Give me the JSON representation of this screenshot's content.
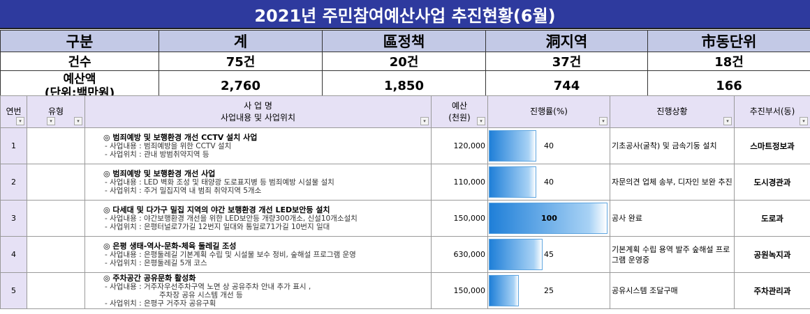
{
  "title": "2021년 주민참여예산사업 추진현황(6월)",
  "summary": {
    "headers": [
      "구분",
      "계",
      "區정책",
      "洞지역",
      "市동단위"
    ],
    "count_label": "건수",
    "counts": [
      "75건",
      "20건",
      "37건",
      "18건"
    ],
    "budget_label_1": "예산액",
    "budget_label_2": "(단위:백만원)",
    "budgets": [
      "2,760",
      "1,850",
      "744",
      "166"
    ]
  },
  "table": {
    "headers": {
      "no": "연번",
      "type": "유형",
      "project_1": "사 업 명",
      "project_2": "사업내용 및 사업위치",
      "budget_1": "예산",
      "budget_2": "(천원)",
      "progress": "진행률(%)",
      "status": "진행상황",
      "dept": "추진부서(동)"
    },
    "dropdown_glyph": "▾",
    "rows": [
      {
        "no": "1",
        "title": "◎ 범죄예방 및 보행환경 개선 CCTV 설치 사업",
        "lines": [
          "- 사업내용 : 범죄예방을 위한 CCTV 설치",
          "- 사업위치 : 관내 방범취약지역 등"
        ],
        "budget": "120,000",
        "progress": 40,
        "progress_label": "40",
        "status": "기초공사(굴착) 및 금속기둥 설치",
        "dept": "스마트정보과"
      },
      {
        "no": "2",
        "title": "◎ 범죄예방 및 보행환경 개선 사업",
        "lines": [
          "- 사업내용 : LED 벽화 조성 및 태양광 도로표지병 등 범죄예방 시설물 설치",
          "- 사업위치 : 주거 밀집지역 내 범죄 취약지역 5개소"
        ],
        "budget": "110,000",
        "progress": 40,
        "progress_label": "40",
        "status": "자문의견 업체 송부, 디자인 보완 추진",
        "dept": "도시경관과"
      },
      {
        "no": "3",
        "title": "◎ 다세대 및 다가구 밀집 지역의 야간 보행환경 개선 LED보안등 설치",
        "lines": [
          "- 사업내용 : 야간보행환경 개선을 위한 LED보안등 개량300개소, 신설10개소설치",
          "- 사업위치 : 은평터널로7가길 12번지 일대와 통일로71가길 10번지 일대"
        ],
        "budget": "150,000",
        "progress": 100,
        "progress_label": "100",
        "status": "공사 완료",
        "dept": "도로과"
      },
      {
        "no": "4",
        "title": "◎ 은평 생태-역사-문화-체육 둘레길 조성",
        "lines": [
          "- 사업내용 : 은평둘레길 기본계획 수립 및 시설물 보수 정비, 숲해설 프로그램 운영",
          "- 사업위치 : 은평둘레길 5개 코스"
        ],
        "budget": "630,000",
        "progress": 45,
        "progress_label": "45",
        "status": "기본계획 수립 용역 발주 숲해설 프로그램 운영중",
        "dept": "공원녹지과"
      },
      {
        "no": "5",
        "title": "◎ 주차공간 공유문화 활성화",
        "lines": [
          "- 사업내용 : 거주자우선주차구역 노면 상 공유주차 안내 추가 표시 ,",
          "주차장 공유 시스템 개선 등",
          "- 사업위치 : 은평구 거주자 공유구획"
        ],
        "budget": "150,000",
        "progress": 25,
        "progress_label": "25",
        "status": "공유시스템 조달구매",
        "dept": "주차관리과"
      }
    ]
  }
}
